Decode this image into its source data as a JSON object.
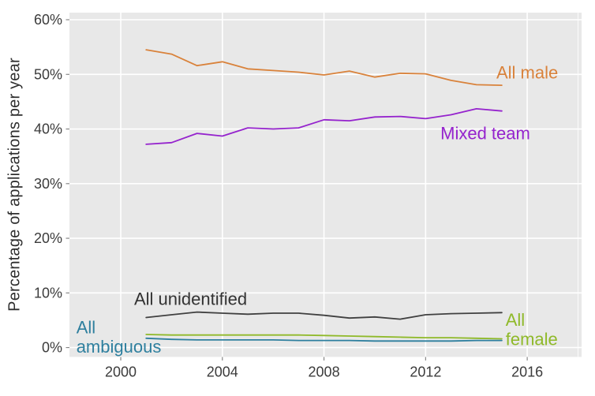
{
  "figure": {
    "background": "#ffffff",
    "plot_background": "#e8e8e8",
    "grid_color": "#ffffff",
    "tick_color": "#7f7f7f",
    "tick_label_color": "#3b3b3b",
    "axis_title_color": "#2e2e2e"
  },
  "chart_data": {
    "type": "line",
    "title": "",
    "xlabel": "",
    "ylabel": "Percentage of applications per year",
    "grid": true,
    "legend_position": "inline-annotations",
    "xlim": [
      1997.98,
      2018.14
    ],
    "ylim": [
      -1.72,
      61.3
    ],
    "xticks": [
      2000,
      2004,
      2008,
      2012,
      2016
    ],
    "xticks_minor": [
      2018
    ],
    "yticks": [
      0,
      10,
      20,
      30,
      40,
      50,
      60
    ],
    "ytick_suffix": "%",
    "x": [
      2001,
      2002,
      2003,
      2004,
      2005,
      2006,
      2007,
      2008,
      2009,
      2010,
      2011,
      2012,
      2013,
      2014,
      2015
    ],
    "series": [
      {
        "name": "All male",
        "color": "#d9823b",
        "values": [
          54.5,
          53.7,
          51.6,
          52.3,
          51.0,
          50.7,
          50.4,
          49.9,
          50.6,
          49.5,
          50.2,
          50.1,
          48.9,
          48.1,
          48.0
        ]
      },
      {
        "name": "Mixed team",
        "color": "#9523cd",
        "values": [
          37.2,
          37.5,
          39.2,
          38.7,
          40.2,
          40.0,
          40.2,
          41.7,
          41.5,
          42.2,
          42.3,
          41.9,
          42.6,
          43.7,
          43.3
        ]
      },
      {
        "name": "All unidentified",
        "color": "#404040",
        "values": [
          5.5,
          6.0,
          6.5,
          6.3,
          6.1,
          6.3,
          6.3,
          5.9,
          5.4,
          5.6,
          5.2,
          6.0,
          6.2,
          6.3,
          6.4
        ]
      },
      {
        "name": "All female",
        "color": "#8fb929",
        "values": [
          2.4,
          2.3,
          2.3,
          2.3,
          2.3,
          2.3,
          2.3,
          2.2,
          2.1,
          2.0,
          1.9,
          1.8,
          1.8,
          1.7,
          1.6
        ]
      },
      {
        "name": "All ambiguous",
        "color": "#2e7f9e",
        "values": [
          1.7,
          1.5,
          1.4,
          1.4,
          1.4,
          1.4,
          1.3,
          1.3,
          1.3,
          1.2,
          1.2,
          1.2,
          1.2,
          1.3,
          1.3
        ]
      }
    ],
    "annotations": [
      {
        "text": "All male",
        "x": 2016.0,
        "y": 50.3,
        "anchor": "middle",
        "color": "#d9823b"
      },
      {
        "text": "Mixed team",
        "x": 2014.35,
        "y": 39.2,
        "anchor": "middle",
        "color": "#9523cd"
      },
      {
        "text": "All unidentified",
        "x": 2002.75,
        "y": 8.9,
        "anchor": "middle",
        "color": "#333333"
      },
      {
        "text": "All",
        "x": 1998.25,
        "y": 3.7,
        "anchor": "start",
        "color": "#2e7f9e"
      },
      {
        "text": "ambiguous",
        "x": 1998.25,
        "y": 0.15,
        "anchor": "start",
        "color": "#2e7f9e"
      },
      {
        "text": "All",
        "x": 2015.15,
        "y": 5.05,
        "anchor": "start",
        "color": "#8fb929"
      },
      {
        "text": "female",
        "x": 2015.15,
        "y": 1.5,
        "anchor": "start",
        "color": "#8fb929"
      }
    ]
  }
}
